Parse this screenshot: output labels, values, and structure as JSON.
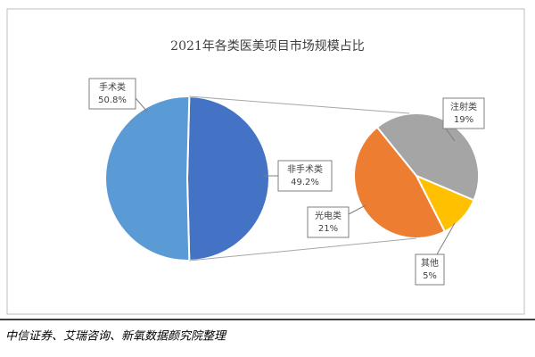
{
  "chart_data": {
    "type": "pie",
    "title": "2021年各类医美项目市场规模占比",
    "categories": [
      "手术类",
      "非手术类"
    ],
    "values": [
      50.8,
      49.2
    ],
    "value_labels": [
      "50.8%",
      "49.2%"
    ],
    "colors": [
      "#5b9bd5",
      "#4472c4"
    ],
    "sub_pie": {
      "categories": [
        "注射类",
        "其他",
        "光电类"
      ],
      "values": [
        19,
        5,
        21
      ],
      "value_labels": [
        "19%",
        "5%",
        "21%"
      ],
      "colors": [
        "#a5a5a5",
        "#ffc000",
        "#ed7d31"
      ]
    },
    "source": "中信证券、艾瑞咨询、新氧数据颜究院整理"
  }
}
